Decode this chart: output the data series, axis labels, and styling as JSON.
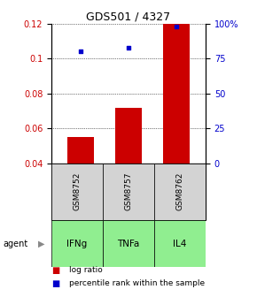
{
  "title": "GDS501 / 4327",
  "categories": [
    "IFNg",
    "TNFa",
    "IL4"
  ],
  "sample_ids": [
    "GSM8752",
    "GSM8757",
    "GSM8762"
  ],
  "log_ratio": [
    0.055,
    0.072,
    0.12
  ],
  "percentile_rank": [
    80,
    83,
    98
  ],
  "ylim_left": [
    0.04,
    0.12
  ],
  "ylim_right": [
    0,
    100
  ],
  "yticks_left": [
    0.04,
    0.06,
    0.08,
    0.1,
    0.12
  ],
  "yticks_right": [
    0,
    25,
    50,
    75,
    100
  ],
  "ytick_labels_right": [
    "0",
    "25",
    "50",
    "75",
    "100%"
  ],
  "bar_color": "#cc0000",
  "scatter_color": "#0000cc",
  "agent_color": "#90ee90",
  "sample_color": "#d3d3d3",
  "legend_log_ratio": "log ratio",
  "legend_percentile": "percentile rank within the sample",
  "agent_label": "agent"
}
